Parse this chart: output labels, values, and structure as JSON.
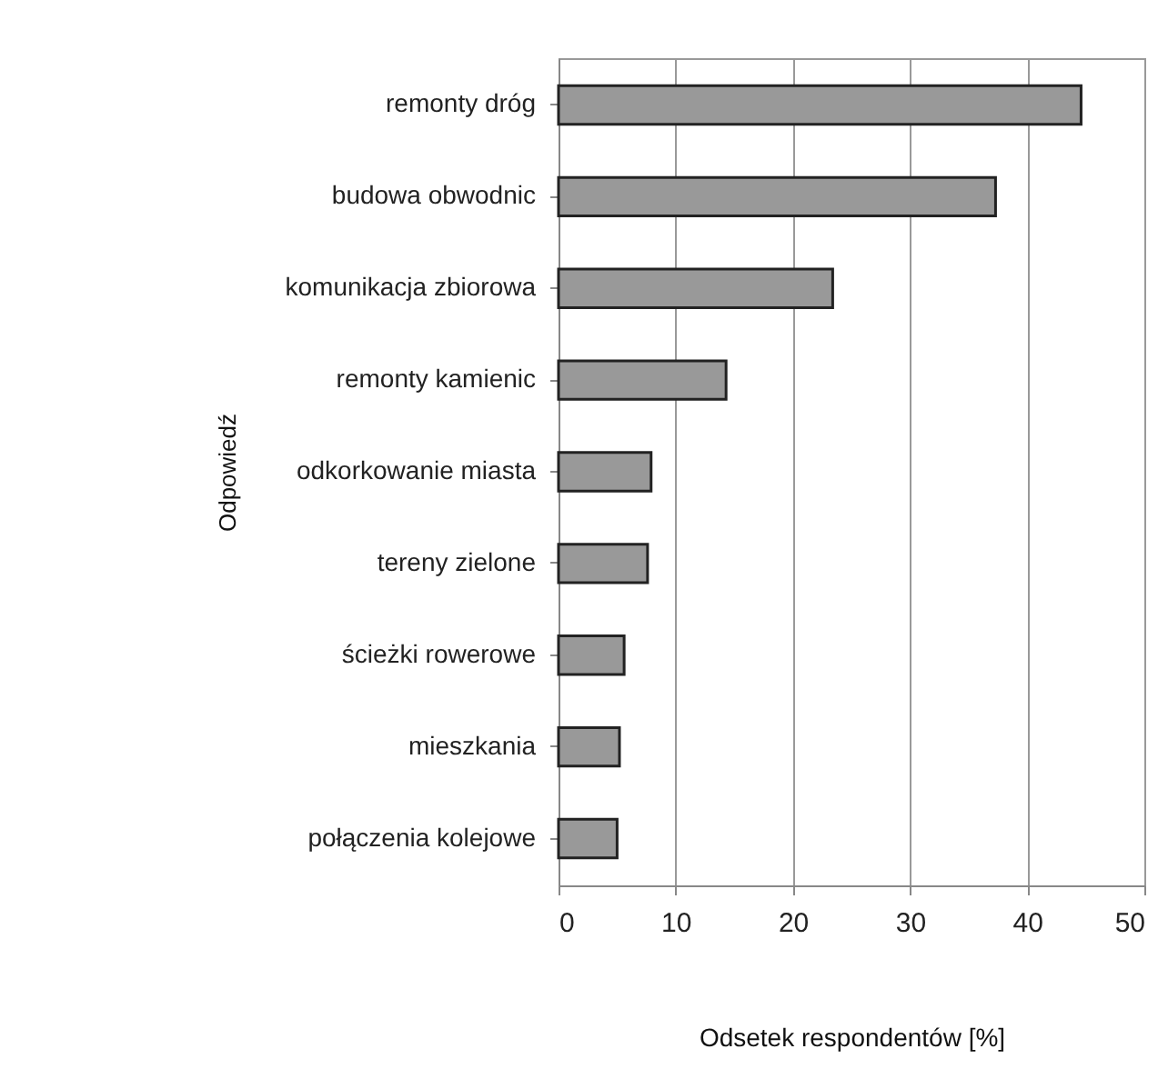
{
  "chart_data": {
    "type": "bar",
    "orientation": "horizontal",
    "xlabel": "Odsetek respondentów [%]",
    "ylabel": "Odpowiedź",
    "categories": [
      "remonty dróg",
      "budowa obwodnic",
      "komunikacja zbiorowa",
      "remonty kamienic",
      "odkorkowanie miasta",
      "tereny zielone",
      "ścieżki rowerowe",
      "mieszkania",
      "połączenia kolejowe"
    ],
    "values": [
      44.6,
      37.3,
      23.4,
      14.3,
      7.9,
      7.6,
      5.6,
      5.2,
      5.0
    ],
    "color": "#999999",
    "xlim": [
      0,
      50
    ],
    "xticks": [
      0,
      10,
      20,
      30,
      40,
      50
    ],
    "grid": "x"
  }
}
